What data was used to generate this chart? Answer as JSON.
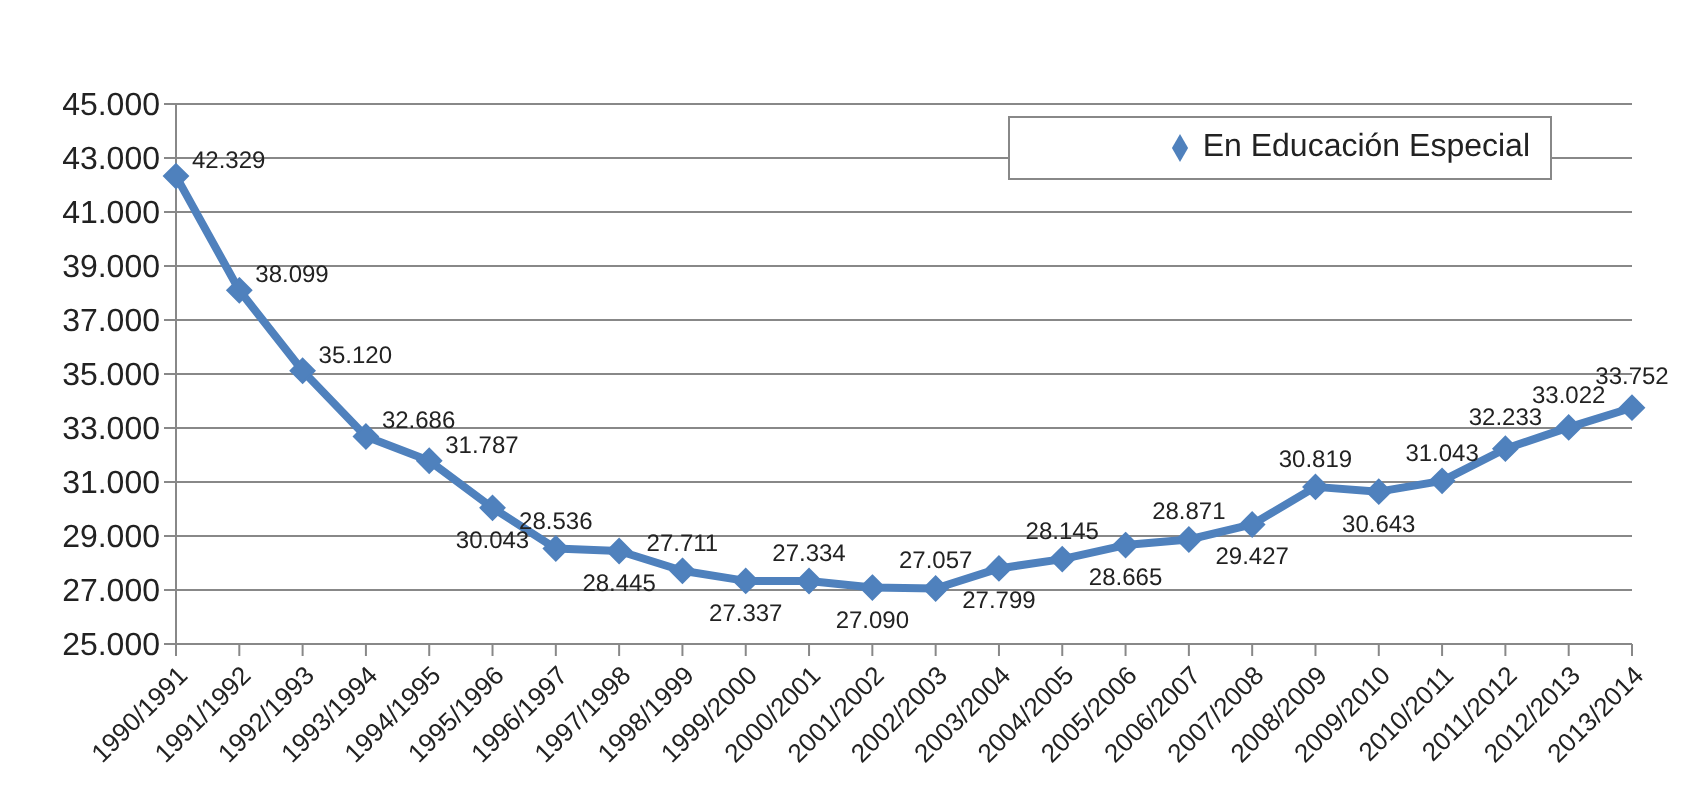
{
  "chart_data": {
    "type": "line",
    "categories": [
      "1990/1991",
      "1991/1992",
      "1992/1993",
      "1993/1994",
      "1994/1995",
      "1995/1996",
      "1996/1997",
      "1997/1998",
      "1998/1999",
      "1999/2000",
      "2000/2001",
      "2001/2002",
      "2002/2003",
      "2003/2004",
      "2004/2005",
      "2005/2006",
      "2006/2007",
      "2007/2008",
      "2008/2009",
      "2009/2010",
      "2010/2011",
      "2011/2012",
      "2012/2013",
      "2013/2014"
    ],
    "series": [
      {
        "name": "En Educación Especial",
        "color": "#4f81bd",
        "values": [
          42329,
          38099,
          35120,
          32686,
          31787,
          30043,
          28536,
          28445,
          27711,
          27337,
          27334,
          27090,
          27057,
          27799,
          28145,
          28665,
          28871,
          29427,
          30819,
          30643,
          31043,
          32233,
          33022,
          33752
        ],
        "value_labels": [
          "42.329",
          "38.099",
          "35.120",
          "32.686",
          "31.787",
          "30.043",
          "28.536",
          "28.445",
          "27.711",
          "27.337",
          "27.334",
          "27.090",
          "27.057",
          "27.799",
          "28.145",
          "28.665",
          "28.871",
          "29.427",
          "30.819",
          "30.643",
          "31.043",
          "32.233",
          "33.022",
          "33.752"
        ]
      }
    ],
    "ylim": [
      25000,
      45000
    ],
    "yticks": [
      {
        "value": 25000,
        "label": "25.000"
      },
      {
        "value": 27000,
        "label": "27.000"
      },
      {
        "value": 29000,
        "label": "29.000"
      },
      {
        "value": 31000,
        "label": "31.000"
      },
      {
        "value": 33000,
        "label": "33.000"
      },
      {
        "value": 35000,
        "label": "35.000"
      },
      {
        "value": 37000,
        "label": "37.000"
      },
      {
        "value": 39000,
        "label": "39.000"
      },
      {
        "value": 41000,
        "label": "41.000"
      },
      {
        "value": 43000,
        "label": "43.000"
      },
      {
        "value": 45000,
        "label": "45.000"
      }
    ],
    "grid": "y",
    "legend": "top right",
    "marker": "diamond",
    "line_style": "solid"
  }
}
